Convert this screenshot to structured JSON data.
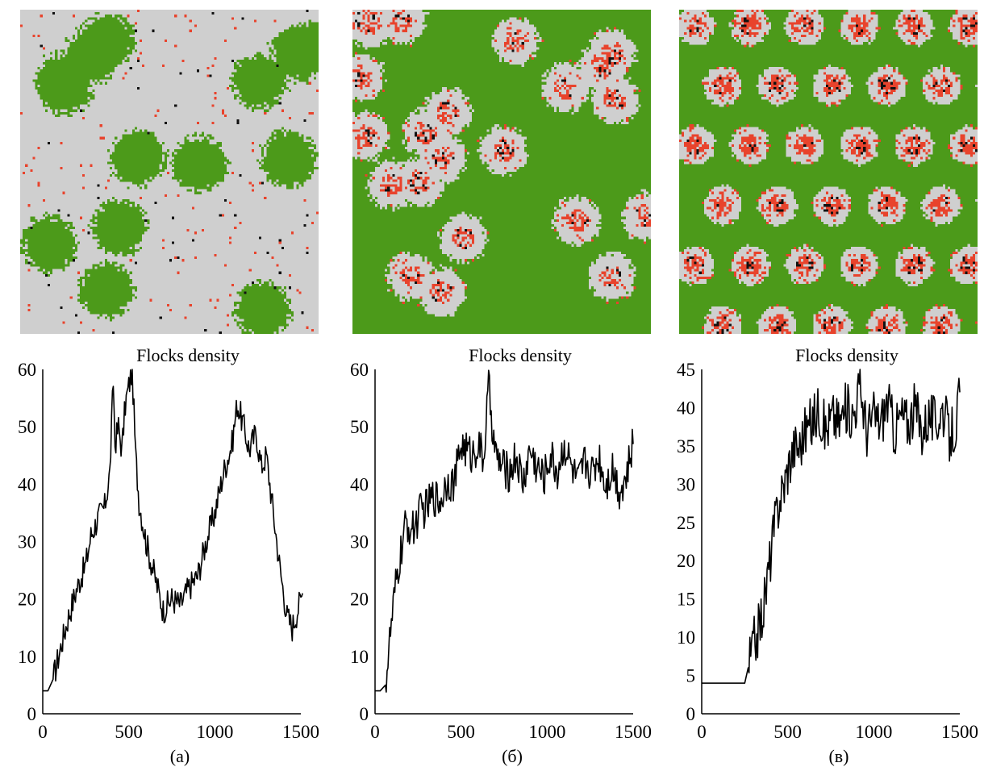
{
  "colors": {
    "empty": "#cfcfcf",
    "grass": "#4c9a1a",
    "flock": "#e8432c",
    "predator": "#111111",
    "line": "#000000"
  },
  "panels": [
    {
      "caption": "(а)",
      "chart_data": {
        "type": "line",
        "title": "Flocks density",
        "xlabel": "",
        "ylabel": "",
        "xlim": [
          0,
          1500
        ],
        "ylim": [
          0,
          60
        ],
        "xticks": [
          "0",
          "500",
          "1000",
          "1500"
        ],
        "yticks": [
          "0",
          "10",
          "20",
          "30",
          "40",
          "50",
          "60"
        ],
        "x": [
          0,
          30,
          60,
          100,
          150,
          200,
          250,
          280,
          320,
          360,
          390,
          410,
          420,
          440,
          460,
          480,
          500,
          520,
          540,
          560,
          600,
          650,
          700,
          750,
          800,
          850,
          900,
          950,
          1000,
          1050,
          1100,
          1130,
          1160,
          1200,
          1240,
          1270,
          1300,
          1340,
          1380,
          1420,
          1450,
          1480,
          1510
        ],
        "y": [
          4,
          4,
          6,
          11,
          17,
          22,
          26,
          31,
          34,
          36,
          42,
          58,
          47,
          50,
          46,
          54,
          57,
          60,
          45,
          37,
          30,
          24,
          18,
          20,
          19,
          22,
          24,
          30,
          35,
          42,
          47,
          54,
          51,
          46,
          49,
          43,
          45,
          35,
          25,
          17,
          15,
          18,
          21
        ]
      }
    },
    {
      "caption": "(б)",
      "chart_data": {
        "type": "line",
        "title": "Flocks density",
        "xlabel": "",
        "ylabel": "",
        "xlim": [
          0,
          1500
        ],
        "ylim": [
          0,
          60
        ],
        "xticks": [
          "0",
          "500",
          "1000",
          "1500"
        ],
        "yticks": [
          "0",
          "10",
          "20",
          "30",
          "40",
          "50",
          "60"
        ],
        "x": [
          0,
          30,
          60,
          90,
          120,
          150,
          180,
          220,
          260,
          300,
          340,
          380,
          420,
          460,
          500,
          530,
          560,
          600,
          630,
          660,
          700,
          740,
          780,
          820,
          860,
          900,
          940,
          980,
          1020,
          1060,
          1100,
          1140,
          1180,
          1220,
          1260,
          1300,
          1340,
          1380,
          1420,
          1460,
          1500
        ],
        "y": [
          4,
          4,
          5,
          14,
          22,
          28,
          33,
          32,
          35,
          36,
          38,
          37,
          41,
          40,
          47,
          46,
          45,
          47,
          44,
          57,
          45,
          43,
          42,
          45,
          40,
          46,
          43,
          41,
          45,
          42,
          47,
          43,
          40,
          44,
          42,
          45,
          40,
          43,
          39,
          41,
          47
        ]
      }
    },
    {
      "caption": "(в)",
      "chart_data": {
        "type": "line",
        "title": "Flocks density",
        "xlabel": "",
        "ylabel": "",
        "xlim": [
          0,
          1500
        ],
        "ylim": [
          0,
          45
        ],
        "xticks": [
          "0",
          "500",
          "1000",
          "1500"
        ],
        "yticks": [
          "0",
          "5",
          "10",
          "15",
          "20",
          "25",
          "30",
          "35",
          "40",
          "45"
        ],
        "x": [
          0,
          100,
          200,
          250,
          270,
          300,
          330,
          360,
          390,
          420,
          450,
          480,
          510,
          540,
          570,
          600,
          640,
          680,
          720,
          760,
          800,
          840,
          880,
          920,
          960,
          1000,
          1040,
          1080,
          1120,
          1160,
          1200,
          1240,
          1280,
          1320,
          1360,
          1400,
          1440,
          1480,
          1500
        ],
        "y": [
          4,
          4,
          4,
          4,
          6,
          9,
          11,
          14,
          19,
          24,
          28,
          30,
          33,
          35,
          35,
          37,
          38,
          40,
          37,
          39,
          38,
          40,
          39,
          43,
          37,
          39,
          38,
          41,
          37,
          39,
          38,
          40,
          37,
          39,
          38,
          40,
          36,
          38,
          42
        ]
      }
    }
  ]
}
